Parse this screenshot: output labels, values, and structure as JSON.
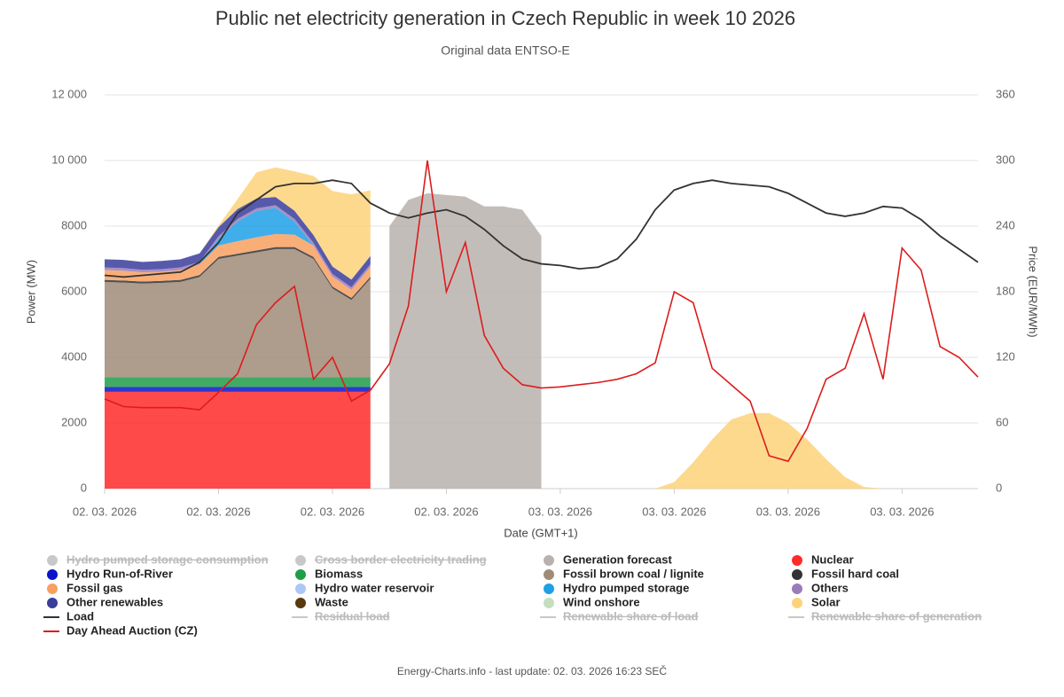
{
  "chart_data": {
    "type": "area",
    "title": "Public net electricity generation in Czech Republic in week 10 2026",
    "subtitle": "Original data ENTSO-E",
    "x_label": "Date (GMT+1)",
    "y_label": "Power (MW)",
    "y2_label": "Price (EUR/MWh)",
    "footer": "Energy-Charts.info - last update: 02. 03. 2026 16:23 SEČ",
    "grid": true,
    "legend": "bottom",
    "x": [
      0,
      1,
      2,
      3,
      4,
      5,
      6,
      7,
      8,
      9,
      10,
      11,
      12,
      13,
      14,
      15,
      16,
      17,
      18,
      19,
      20,
      21,
      22,
      23,
      24,
      25,
      26,
      27,
      28,
      29,
      30,
      31,
      32,
      33,
      34,
      35,
      36,
      37,
      38,
      39,
      40,
      41,
      42,
      43,
      44,
      45,
      46
    ],
    "xlim": [
      0,
      46
    ],
    "xticks": [
      {
        "value": 0,
        "label": "02. 03. 2026"
      },
      {
        "value": 6,
        "label": "02. 03. 2026"
      },
      {
        "value": 12,
        "label": "02. 03. 2026"
      },
      {
        "value": 18,
        "label": "02. 03. 2026"
      },
      {
        "value": 24,
        "label": "03. 03. 2026"
      },
      {
        "value": 30,
        "label": "03. 03. 2026"
      },
      {
        "value": 36,
        "label": "03. 03. 2026"
      },
      {
        "value": 42,
        "label": "03. 03. 2026"
      }
    ],
    "ylim": [
      0,
      12000
    ],
    "yticks": [
      0,
      2000,
      4000,
      6000,
      8000,
      {
        "value": 10000,
        "label": "10 000"
      },
      {
        "value": 12000,
        "label": "12 000"
      }
    ],
    "y2lim": [
      0,
      360
    ],
    "y2ticks": [
      0,
      60,
      120,
      180,
      240,
      300,
      360
    ],
    "series": [
      {
        "name": "Hydro pumped storage consumption",
        "kind": "area",
        "visible": false,
        "color": "#c8c8c8"
      },
      {
        "name": "Cross border electricity trading",
        "kind": "area",
        "visible": false,
        "color": "#c8c8c8"
      },
      {
        "name": "Generation forecast",
        "kind": "area",
        "color": "#b8b1ad",
        "values": [
          null,
          null,
          null,
          null,
          null,
          null,
          null,
          null,
          null,
          null,
          null,
          null,
          null,
          null,
          null,
          8000,
          8800,
          9000,
          8950,
          8900,
          8600,
          8600,
          8500,
          7700,
          null,
          null,
          null,
          null,
          null,
          null,
          null,
          null,
          null,
          null,
          null,
          null,
          null,
          null,
          null,
          null,
          null,
          null,
          null,
          null,
          null,
          null,
          null
        ]
      },
      {
        "name": "Nuclear",
        "kind": "area",
        "stack": true,
        "color": "#ff2a2a",
        "values": [
          2950,
          2950,
          2950,
          2950,
          2950,
          2950,
          2950,
          2950,
          2950,
          2950,
          2950,
          2950,
          2950,
          2950,
          2950,
          null,
          null,
          null,
          null,
          null,
          null,
          null,
          null,
          null,
          null,
          null,
          null,
          null,
          null,
          null,
          null,
          null,
          null,
          null,
          null,
          null,
          null,
          null,
          null,
          null,
          null,
          null,
          null,
          null,
          null,
          null,
          null
        ]
      },
      {
        "name": "Hydro Run-of-River",
        "kind": "area",
        "stack": true,
        "color": "#0a14c8",
        "values": [
          150,
          150,
          150,
          150,
          150,
          150,
          150,
          150,
          150,
          150,
          150,
          150,
          150,
          150,
          150,
          null,
          null,
          null,
          null,
          null,
          null,
          null,
          null,
          null,
          null,
          null,
          null,
          null,
          null,
          null,
          null,
          null,
          null,
          null,
          null,
          null,
          null,
          null,
          null,
          null,
          null,
          null,
          null,
          null,
          null,
          null,
          null
        ]
      },
      {
        "name": "Biomass",
        "kind": "area",
        "stack": true,
        "color": "#1f9e48",
        "values": [
          300,
          300,
          300,
          300,
          300,
          300,
          300,
          300,
          300,
          300,
          300,
          300,
          300,
          300,
          300,
          null,
          null,
          null,
          null,
          null,
          null,
          null,
          null,
          null,
          null,
          null,
          null,
          null,
          null,
          null,
          null,
          null,
          null,
          null,
          null,
          null,
          null,
          null,
          null,
          null,
          null,
          null,
          null,
          null,
          null,
          null,
          null
        ]
      },
      {
        "name": "Fossil brown coal / lignite",
        "kind": "area",
        "stack": true,
        "color": "#a08b78",
        "values": [
          2900,
          2880,
          2850,
          2870,
          2900,
          3050,
          3600,
          3700,
          3800,
          3900,
          3900,
          3600,
          2700,
          2350,
          3000,
          null,
          null,
          null,
          null,
          null,
          null,
          null,
          null,
          null,
          null,
          null,
          null,
          null,
          null,
          null,
          null,
          null,
          null,
          null,
          null,
          null,
          null,
          null,
          null,
          null,
          null,
          null,
          null,
          null,
          null,
          null,
          null
        ]
      },
      {
        "name": "Fossil hard coal",
        "kind": "area",
        "stack": true,
        "color": "#333333",
        "values": [
          60,
          60,
          60,
          60,
          60,
          60,
          60,
          60,
          60,
          60,
          60,
          60,
          60,
          60,
          60,
          null,
          null,
          null,
          null,
          null,
          null,
          null,
          null,
          null,
          null,
          null,
          null,
          null,
          null,
          null,
          null,
          null,
          null,
          null,
          null,
          null,
          null,
          null,
          null,
          null,
          null,
          null,
          null,
          null,
          null,
          null,
          null
        ]
      },
      {
        "name": "Fossil gas",
        "kind": "area",
        "stack": true,
        "color": "#f8a060",
        "values": [
          300,
          300,
          280,
          280,
          300,
          320,
          350,
          380,
          400,
          400,
          380,
          350,
          300,
          250,
          300,
          null,
          null,
          null,
          null,
          null,
          null,
          null,
          null,
          null,
          null,
          null,
          null,
          null,
          null,
          null,
          null,
          null,
          null,
          null,
          null,
          null,
          null,
          null,
          null,
          null,
          null,
          null,
          null,
          null,
          null,
          null,
          null
        ]
      },
      {
        "name": "Hydro water reservoir",
        "kind": "area",
        "color": "#aac8f5"
      },
      {
        "name": "Hydro pumped storage",
        "kind": "area",
        "stack": true,
        "color": "#1ea0e6",
        "values": [
          0,
          0,
          0,
          0,
          0,
          0,
          200,
          600,
          800,
          800,
          400,
          0,
          0,
          0,
          0,
          null,
          null,
          null,
          null,
          null,
          null,
          null,
          null,
          null,
          null,
          null,
          null,
          null,
          null,
          null,
          null,
          null,
          null,
          null,
          null,
          null,
          null,
          null,
          null,
          null,
          null,
          null,
          null,
          null,
          null,
          null,
          null
        ]
      },
      {
        "name": "Others",
        "kind": "area",
        "stack": true,
        "color": "#9a7cba",
        "values": [
          80,
          80,
          80,
          80,
          80,
          80,
          80,
          80,
          80,
          80,
          80,
          80,
          80,
          80,
          80,
          null,
          null,
          null,
          null,
          null,
          null,
          null,
          null,
          null,
          null,
          null,
          null,
          null,
          null,
          null,
          null,
          null,
          null,
          null,
          null,
          null,
          null,
          null,
          null,
          null,
          null,
          null,
          null,
          null,
          null,
          null,
          null
        ]
      },
      {
        "name": "Other renewables",
        "kind": "area",
        "stack": true,
        "color": "#3a3d9c",
        "values": [
          250,
          250,
          240,
          250,
          250,
          260,
          280,
          300,
          300,
          250,
          250,
          240,
          230,
          230,
          250,
          null,
          null,
          null,
          null,
          null,
          null,
          null,
          null,
          null,
          null,
          null,
          null,
          null,
          null,
          null,
          null,
          null,
          null,
          null,
          null,
          null,
          null,
          null,
          null,
          null,
          null,
          null,
          null,
          null,
          null,
          null,
          null
        ]
      },
      {
        "name": "Waste",
        "kind": "area",
        "color": "#5a3810"
      },
      {
        "name": "Wind onshore",
        "kind": "area",
        "color": "#c4dfc0"
      },
      {
        "name": "Solar",
        "kind": "area",
        "stack": true,
        "color": "#fdd27a",
        "values": [
          0,
          0,
          0,
          0,
          0,
          0,
          50,
          300,
          800,
          900,
          1200,
          1800,
          2300,
          2600,
          2000,
          null,
          null,
          null,
          null,
          null,
          null,
          null,
          null,
          null,
          null,
          null,
          null,
          null,
          null,
          0,
          200,
          800,
          1500,
          2100,
          2300,
          2300,
          2000,
          1500,
          900,
          350,
          50,
          0,
          null,
          null,
          null,
          null,
          null
        ]
      },
      {
        "name": "Load",
        "kind": "line",
        "color": "#333333",
        "values": [
          6500,
          6450,
          6500,
          6550,
          6600,
          6900,
          7500,
          8400,
          8800,
          9200,
          9300,
          9300,
          9400,
          9300,
          8700,
          8400,
          8250,
          8400,
          8500,
          8300,
          7900,
          7400,
          7000,
          6850,
          6800,
          6700,
          6750,
          7000,
          7600,
          8500,
          9100,
          9300,
          9400,
          9300,
          9250,
          9200,
          9000,
          8700,
          8400,
          8300,
          8400,
          8600,
          8550,
          8200,
          7700,
          7300,
          6900
        ]
      },
      {
        "name": "Residual load",
        "kind": "line",
        "visible": false,
        "color": "#c8c8c8"
      },
      {
        "name": "Renewable share of load",
        "kind": "line",
        "visible": false,
        "color": "#c8c8c8"
      },
      {
        "name": "Renewable share of generation",
        "kind": "line",
        "visible": false,
        "color": "#c8c8c8"
      },
      {
        "name": "Day Ahead Auction (CZ)",
        "kind": "line",
        "axis": "y2",
        "color": "#dd1c1c",
        "values": [
          82,
          75,
          74,
          74,
          74,
          72,
          88,
          105,
          150,
          170,
          185,
          100,
          120,
          80,
          90,
          114,
          167,
          300,
          180,
          225,
          140,
          110,
          95,
          92,
          93,
          95,
          97,
          100,
          105,
          115,
          180,
          170,
          110,
          95,
          80,
          30,
          25,
          55,
          100,
          110,
          160,
          100,
          220,
          200,
          130,
          120,
          102
        ]
      }
    ]
  }
}
